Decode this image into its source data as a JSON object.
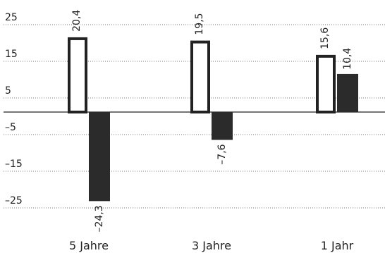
{
  "chart_data": {
    "type": "bar",
    "categories": [
      "5 Jahre",
      "3 Jahre",
      "1 Jahr"
    ],
    "series": [
      {
        "style": "outline",
        "values": [
          20.4,
          19.5,
          15.6
        ],
        "labels": [
          "20,4",
          "19,5",
          "15,6"
        ]
      },
      {
        "style": "filled",
        "values": [
          -24.3,
          -7.6,
          10.4
        ],
        "labels": [
          "–24,3",
          "–7,6",
          "10,4"
        ]
      }
    ],
    "yticks": [
      25,
      15,
      5,
      -5,
      -15,
      -25
    ],
    "ytick_labels": [
      "25",
      "15",
      "5",
      "–5",
      "–15",
      "–25"
    ],
    "ylim": [
      -27,
      27
    ],
    "grid": true,
    "legend": "none",
    "colors": {
      "outline_fill": "#ffffff",
      "outline_stroke": "#222222",
      "filled": "#2b2b2b"
    }
  }
}
